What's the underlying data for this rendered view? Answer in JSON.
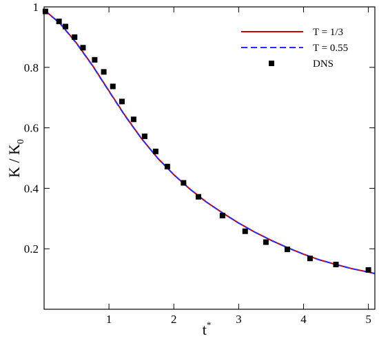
{
  "chart_data": {
    "type": "line",
    "xlabel": "t",
    "xlabel_sup": "*",
    "ylabel": "K / K",
    "ylabel_sub": "0",
    "xlim": [
      0,
      5.1
    ],
    "ylim": [
      0,
      1.0
    ],
    "xticks": [
      1,
      2,
      3,
      4,
      5
    ],
    "yticks": [
      0.2,
      0.4,
      0.6,
      0.8,
      1
    ],
    "ytick_labels": [
      "0.2",
      "0.4",
      "0.6",
      "0.8",
      "1"
    ],
    "legend_position": "top-right",
    "series": [
      {
        "name": "T = 1/3",
        "style": "solid-line",
        "color": "#cc0000",
        "x": [
          0,
          0.25,
          0.5,
          0.75,
          1.0,
          1.25,
          1.5,
          1.75,
          2.0,
          2.25,
          2.5,
          2.75,
          3.0,
          3.25,
          3.5,
          3.75,
          4.0,
          4.25,
          4.5,
          4.75,
          5.0,
          5.1
        ],
        "y": [
          0.99,
          0.945,
          0.88,
          0.805,
          0.722,
          0.64,
          0.565,
          0.5,
          0.445,
          0.397,
          0.355,
          0.319,
          0.285,
          0.255,
          0.228,
          0.204,
          0.182,
          0.163,
          0.148,
          0.134,
          0.123,
          0.118
        ]
      },
      {
        "name": "T = 0.55",
        "style": "dashed-line",
        "color": "#2a2aff",
        "x": [
          0,
          0.25,
          0.5,
          0.75,
          1.0,
          1.25,
          1.5,
          1.75,
          2.0,
          2.25,
          2.5,
          2.75,
          3.0,
          3.25,
          3.5,
          3.75,
          4.0,
          4.25,
          4.5,
          4.75,
          5.0,
          5.1
        ],
        "y": [
          0.99,
          0.944,
          0.879,
          0.804,
          0.721,
          0.639,
          0.565,
          0.5,
          0.445,
          0.397,
          0.355,
          0.319,
          0.285,
          0.255,
          0.228,
          0.204,
          0.182,
          0.163,
          0.148,
          0.134,
          0.123,
          0.118
        ]
      },
      {
        "name": "DNS",
        "style": "square-markers",
        "color": "#000000",
        "x": [
          0.02,
          0.23,
          0.33,
          0.47,
          0.6,
          0.78,
          0.92,
          1.06,
          1.2,
          1.38,
          1.55,
          1.72,
          1.9,
          2.15,
          2.38,
          2.75,
          3.1,
          3.42,
          3.75,
          4.1,
          4.5,
          5.0
        ],
        "y": [
          0.985,
          0.952,
          0.935,
          0.9,
          0.865,
          0.825,
          0.785,
          0.737,
          0.687,
          0.628,
          0.572,
          0.522,
          0.472,
          0.418,
          0.372,
          0.31,
          0.258,
          0.222,
          0.198,
          0.168,
          0.148,
          0.13
        ]
      }
    ]
  }
}
